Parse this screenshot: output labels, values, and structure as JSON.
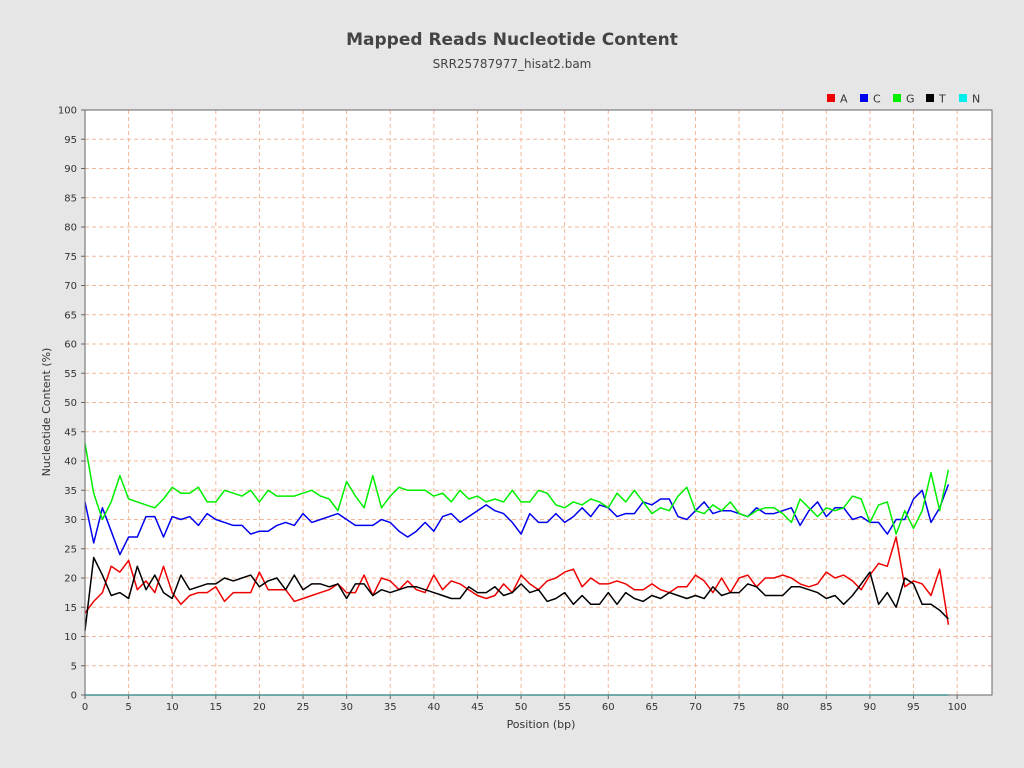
{
  "title": "Mapped Reads Nucleotide Content",
  "subtitle": "SRR25787977_hisat2.bam",
  "chart_data": {
    "type": "line",
    "xlabel": "Position (bp)",
    "ylabel": "Nucleotide Content (%)",
    "xlim": [
      0,
      104
    ],
    "ylim": [
      0,
      100
    ],
    "xticks": [
      0,
      5,
      10,
      15,
      20,
      25,
      30,
      35,
      40,
      45,
      50,
      55,
      60,
      65,
      70,
      75,
      80,
      85,
      90,
      95,
      100
    ],
    "yticks": [
      0,
      5,
      10,
      15,
      20,
      25,
      30,
      35,
      40,
      45,
      50,
      55,
      60,
      65,
      70,
      75,
      80,
      85,
      90,
      95,
      100
    ],
    "grid": true,
    "legend_position": "top-right",
    "x": [
      0,
      1,
      2,
      3,
      4,
      5,
      6,
      7,
      8,
      9,
      10,
      11,
      12,
      13,
      14,
      15,
      16,
      17,
      18,
      19,
      20,
      21,
      22,
      23,
      24,
      25,
      26,
      27,
      28,
      29,
      30,
      31,
      32,
      33,
      34,
      35,
      36,
      37,
      38,
      39,
      40,
      41,
      42,
      43,
      44,
      45,
      46,
      47,
      48,
      49,
      50,
      51,
      52,
      53,
      54,
      55,
      56,
      57,
      58,
      59,
      60,
      61,
      62,
      63,
      64,
      65,
      66,
      67,
      68,
      69,
      70,
      71,
      72,
      73,
      74,
      75,
      76,
      77,
      78,
      79,
      80,
      81,
      82,
      83,
      84,
      85,
      86,
      87,
      88,
      89,
      90,
      91,
      92,
      93,
      94,
      95,
      96,
      97,
      98,
      99
    ],
    "series": [
      {
        "name": "A",
        "color": "#ee0000",
        "values": [
          14,
          16,
          17.5,
          22,
          21,
          23,
          18,
          19.5,
          17.5,
          22,
          17.5,
          15.5,
          17,
          17.5,
          17.5,
          18.5,
          16,
          17.5,
          17.5,
          17.5,
          21,
          18,
          18,
          18,
          16,
          16.5,
          17,
          17.5,
          18,
          19,
          17.5,
          17.5,
          20.5,
          17,
          20,
          19.5,
          18,
          19.5,
          18,
          17.5,
          20.5,
          18,
          19.5,
          19,
          18,
          17,
          16.5,
          17,
          19,
          17.5,
          20.5,
          19,
          18,
          19.5,
          20,
          21,
          21.5,
          18.5,
          20,
          19,
          19,
          19.5,
          19,
          18,
          18,
          19,
          18,
          17.5,
          18.5,
          18.5,
          20.5,
          19.5,
          17.5,
          20,
          17.5,
          20,
          20.5,
          18.5,
          20,
          20,
          20.5,
          20,
          19,
          18.5,
          19,
          21,
          20,
          20.5,
          19.5,
          18,
          20.5,
          22.5,
          22,
          27,
          18.5,
          19.5,
          19,
          17,
          21.5,
          12
        ]
      },
      {
        "name": "C",
        "color": "#0000ee",
        "values": [
          33,
          26,
          32,
          28,
          24,
          27,
          27,
          30.5,
          30.5,
          27,
          30.5,
          30,
          30.5,
          29,
          31,
          30,
          29.5,
          29,
          29,
          27.5,
          28,
          28,
          29,
          29.5,
          29,
          31,
          29.5,
          30,
          30.5,
          31,
          30,
          29,
          29,
          29,
          30,
          29.5,
          28,
          27,
          28,
          29.5,
          28,
          30.5,
          31,
          29.5,
          30.5,
          31.5,
          32.5,
          31.5,
          31,
          29.5,
          27.5,
          31,
          29.5,
          29.5,
          31,
          29.5,
          30.5,
          32,
          30.5,
          32.5,
          32,
          30.5,
          31,
          31,
          33,
          32.5,
          33.5,
          33.5,
          30.5,
          30,
          31.5,
          33,
          31,
          31.5,
          31.5,
          31,
          30.5,
          32,
          31,
          31,
          31.5,
          32,
          29,
          31.5,
          33,
          30.5,
          32,
          32,
          30,
          30.5,
          29.5,
          29.5,
          27.5,
          30,
          30,
          33.5,
          35,
          29.5,
          32,
          36
        ]
      },
      {
        "name": "G",
        "color": "#00ee00",
        "values": [
          43,
          34.5,
          30,
          33,
          37.5,
          33.5,
          33,
          32.5,
          32,
          33.5,
          35.5,
          34.5,
          34.5,
          35.5,
          33,
          33,
          35,
          34.5,
          34,
          35,
          33,
          35,
          34,
          34,
          34,
          34.5,
          35,
          34,
          33.5,
          31.5,
          36.5,
          34,
          32,
          37.5,
          32,
          34,
          35.5,
          35,
          35,
          35,
          34,
          34.5,
          33,
          35,
          33.5,
          34,
          33,
          33.5,
          33,
          35,
          33,
          33,
          35,
          34.5,
          32.5,
          32,
          33,
          32.5,
          33.5,
          33,
          32,
          34.5,
          33,
          35,
          33,
          31,
          32,
          31.5,
          34,
          35.5,
          31.5,
          31,
          32.5,
          31.5,
          33,
          31,
          30.5,
          31.5,
          32,
          32,
          31,
          29.5,
          33.5,
          32,
          30.5,
          32,
          31.5,
          32,
          34,
          33.5,
          29.5,
          32.5,
          33,
          27.5,
          31.5,
          28.5,
          31.5,
          38,
          31.5,
          38.5
        ]
      },
      {
        "name": "T",
        "color": "#000000",
        "values": [
          11,
          23.5,
          20.5,
          17,
          17.5,
          16.5,
          22,
          18,
          20.5,
          17.5,
          16.5,
          20.5,
          18,
          18.5,
          19,
          19,
          20,
          19.5,
          20,
          20.5,
          18.5,
          19.5,
          20,
          18,
          20.5,
          18,
          19,
          19,
          18.5,
          19,
          16.5,
          19,
          19,
          17,
          18,
          17.5,
          18,
          18.5,
          18.5,
          18,
          17.5,
          17,
          16.5,
          16.5,
          18.5,
          17.5,
          17.5,
          18.5,
          17,
          17.5,
          19,
          17.5,
          18,
          16,
          16.5,
          17.5,
          15.5,
          17,
          15.5,
          15.5,
          17.5,
          15.5,
          17.5,
          16.5,
          16,
          17,
          16.5,
          17.5,
          17,
          16.5,
          17,
          16.5,
          18.5,
          17,
          17.5,
          17.5,
          19,
          18.5,
          17,
          17,
          17,
          18.5,
          18.5,
          18,
          17.5,
          16.5,
          17,
          15.5,
          17,
          19,
          21,
          15.5,
          17.5,
          15,
          20,
          19,
          15.5,
          15.5,
          14.5,
          13
        ]
      },
      {
        "name": "N",
        "color": "#00eeee",
        "values": [
          0,
          0,
          0,
          0,
          0,
          0,
          0,
          0,
          0,
          0,
          0,
          0,
          0,
          0,
          0,
          0,
          0,
          0,
          0,
          0,
          0,
          0,
          0,
          0,
          0,
          0,
          0,
          0,
          0,
          0,
          0,
          0,
          0,
          0,
          0,
          0,
          0,
          0,
          0,
          0,
          0,
          0,
          0,
          0,
          0,
          0,
          0,
          0,
          0,
          0,
          0,
          0,
          0,
          0,
          0,
          0,
          0,
          0,
          0,
          0,
          0,
          0,
          0,
          0,
          0,
          0,
          0,
          0,
          0,
          0,
          0,
          0,
          0,
          0,
          0,
          0,
          0,
          0,
          0,
          0,
          0,
          0,
          0,
          0,
          0,
          0,
          0,
          0,
          0,
          0,
          0,
          0,
          0,
          0,
          0,
          0,
          0,
          0,
          0,
          0
        ]
      }
    ]
  }
}
